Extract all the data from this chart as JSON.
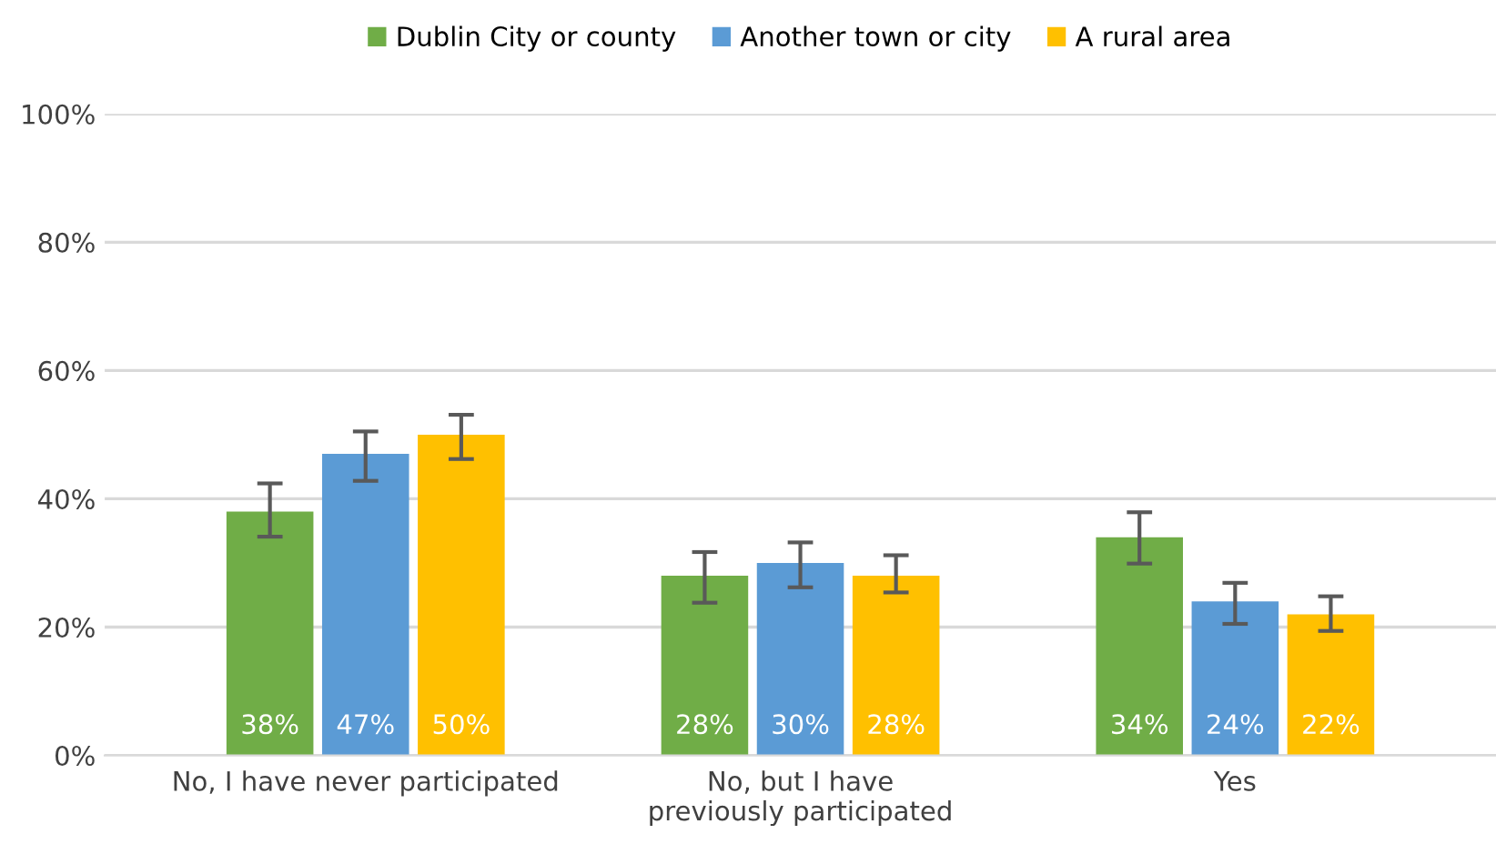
{
  "chart_data": {
    "type": "bar",
    "categories": [
      "No, I have never participated",
      "No, but I have previously participated",
      "Yes"
    ],
    "series": [
      {
        "name": "Dublin City or county",
        "color": "#70ad47",
        "values": [
          38,
          28,
          34
        ],
        "value_labels": [
          "38%",
          "28%",
          "34%"
        ],
        "errors": [
          [
            34.1,
            42.4
          ],
          [
            23.8,
            31.7
          ],
          [
            29.9,
            37.9
          ]
        ]
      },
      {
        "name": "Another town or city",
        "color": "#5b9bd5",
        "values": [
          47,
          30,
          24
        ],
        "value_labels": [
          "47%",
          "30%",
          "24%"
        ],
        "errors": [
          [
            42.8,
            50.5
          ],
          [
            26.2,
            33.2
          ],
          [
            20.5,
            26.9
          ]
        ]
      },
      {
        "name": "A rural area",
        "color": "#ffc000",
        "values": [
          50,
          28,
          22
        ],
        "value_labels": [
          "50%",
          "28%",
          "22%"
        ],
        "errors": [
          [
            46.2,
            53.1
          ],
          [
            25.4,
            31.2
          ],
          [
            19.4,
            24.8
          ]
        ]
      }
    ],
    "ylim": [
      0,
      100
    ],
    "yticks": [
      {
        "value": 0,
        "label": "0%"
      },
      {
        "value": 20,
        "label": "20%"
      },
      {
        "value": 40,
        "label": "40%"
      },
      {
        "value": 60,
        "label": "60%"
      },
      {
        "value": 80,
        "label": "80%"
      },
      {
        "value": 100,
        "label": "100%"
      }
    ],
    "grid": "y",
    "legend": "top"
  }
}
